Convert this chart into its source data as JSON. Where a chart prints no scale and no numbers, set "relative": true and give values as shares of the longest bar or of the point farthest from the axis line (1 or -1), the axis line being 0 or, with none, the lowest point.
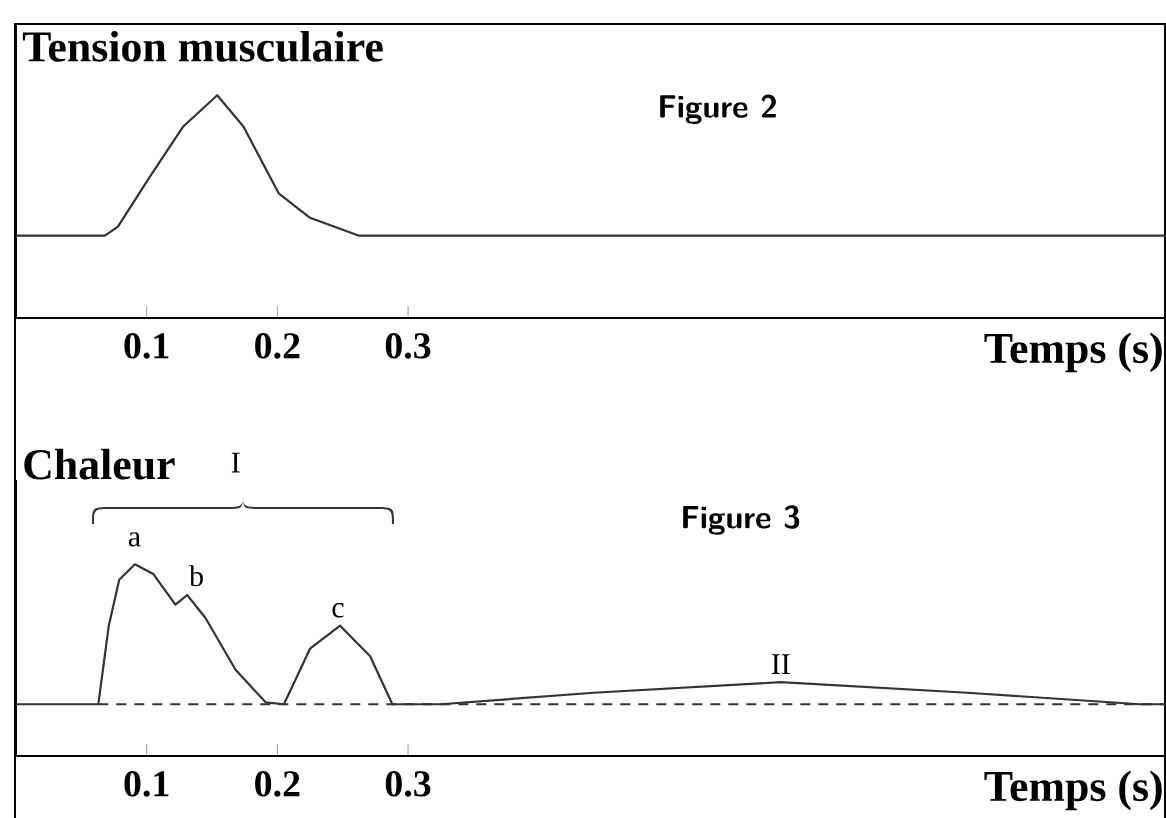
{
  "chart_data": [
    {
      "type": "line",
      "title": "Figure 2",
      "ylabel": "Tension musculaire",
      "xlabel": "Temps (s)",
      "relative": true,
      "xlim": [
        0,
        0.88
      ],
      "xticks": [
        0.1,
        0.2,
        0.3
      ],
      "series": [
        {
          "color": "#333333",
          "line_style": "solid",
          "x": [
            0,
            0.068,
            0.078,
            0.102,
            0.128,
            0.154,
            0.174,
            0.201,
            0.225,
            0.262,
            0.88
          ],
          "values": [
            0.37,
            0.37,
            0.41,
            0.63,
            0.86,
            1,
            0.86,
            0.56,
            0.45,
            0.37,
            0.37
          ]
        }
      ]
    },
    {
      "type": "line",
      "title": "Figure 3",
      "ylabel": "Chaleur",
      "xlabel": "Temps (s)",
      "relative": true,
      "xlim": [
        0,
        0.88
      ],
      "xticks": [
        0.1,
        0.2,
        0.3
      ],
      "annotations": [
        "a",
        "b",
        "c",
        "I",
        "II"
      ],
      "series": [
        {
          "color": "#333333",
          "line_style": "solid",
          "x": [
            0,
            0.063,
            0.071,
            0.079,
            0.091,
            0.105,
            0.122,
            0.131,
            0.145,
            0.168,
            0.191,
            0.205,
            0.225,
            0.248,
            0.271,
            0.288,
            0.325,
            0.442,
            0.585,
            0.728,
            0.86,
            0.88
          ],
          "values": [
            0.27,
            0.27,
            0.68,
            0.92,
            1,
            0.95,
            0.79,
            0.84,
            0.72,
            0.45,
            0.28,
            0.27,
            0.56,
            0.68,
            0.52,
            0.27,
            0.27,
            0.33,
            0.385,
            0.33,
            0.27,
            0.27
          ]
        },
        {
          "color": "#333333",
          "line_style": "dashed",
          "x": [
            0.063,
            0.88
          ],
          "values": [
            0.27,
            0.27
          ]
        }
      ]
    }
  ]
}
